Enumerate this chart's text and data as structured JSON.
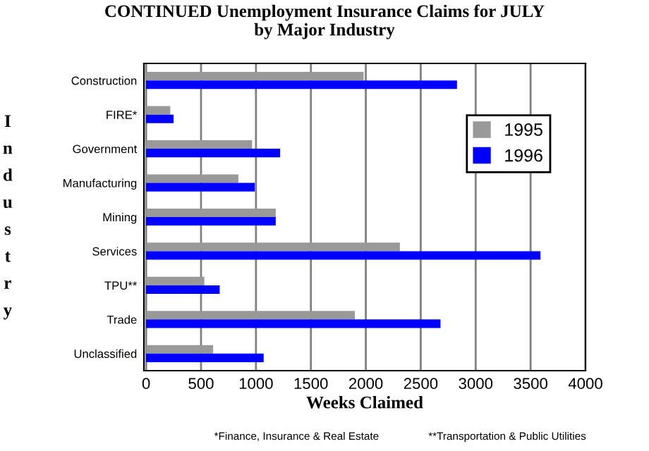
{
  "chart_data": {
    "type": "bar",
    "orientation": "horizontal",
    "title": "CONTINUED Unemployment Insurance Claims for JULY\nby Major Industry",
    "xlabel": "Weeks Claimed",
    "ylabel": "Industry",
    "categories": [
      "Construction",
      "FIRE*",
      "Government",
      "Manufacturing",
      "Mining",
      "Services",
      "TPU**",
      "Trade",
      "Unclassified"
    ],
    "series": [
      {
        "name": "1995",
        "color": "#999999",
        "values": [
          1980,
          220,
          965,
          840,
          1180,
          2310,
          530,
          1900,
          610
        ]
      },
      {
        "name": "1996",
        "color": "#0000ff",
        "values": [
          2830,
          250,
          1220,
          990,
          1180,
          3590,
          670,
          2680,
          1070
        ]
      }
    ],
    "xlim": [
      -20,
      4000
    ],
    "xticks": [
      0,
      500,
      1000,
      1500,
      2000,
      2500,
      3000,
      3500,
      4000
    ],
    "grid": "x",
    "legend": "top right",
    "annotations": [
      "*Finance, Insurance & Real Estate",
      "**Transportation & Public Utilities"
    ]
  }
}
